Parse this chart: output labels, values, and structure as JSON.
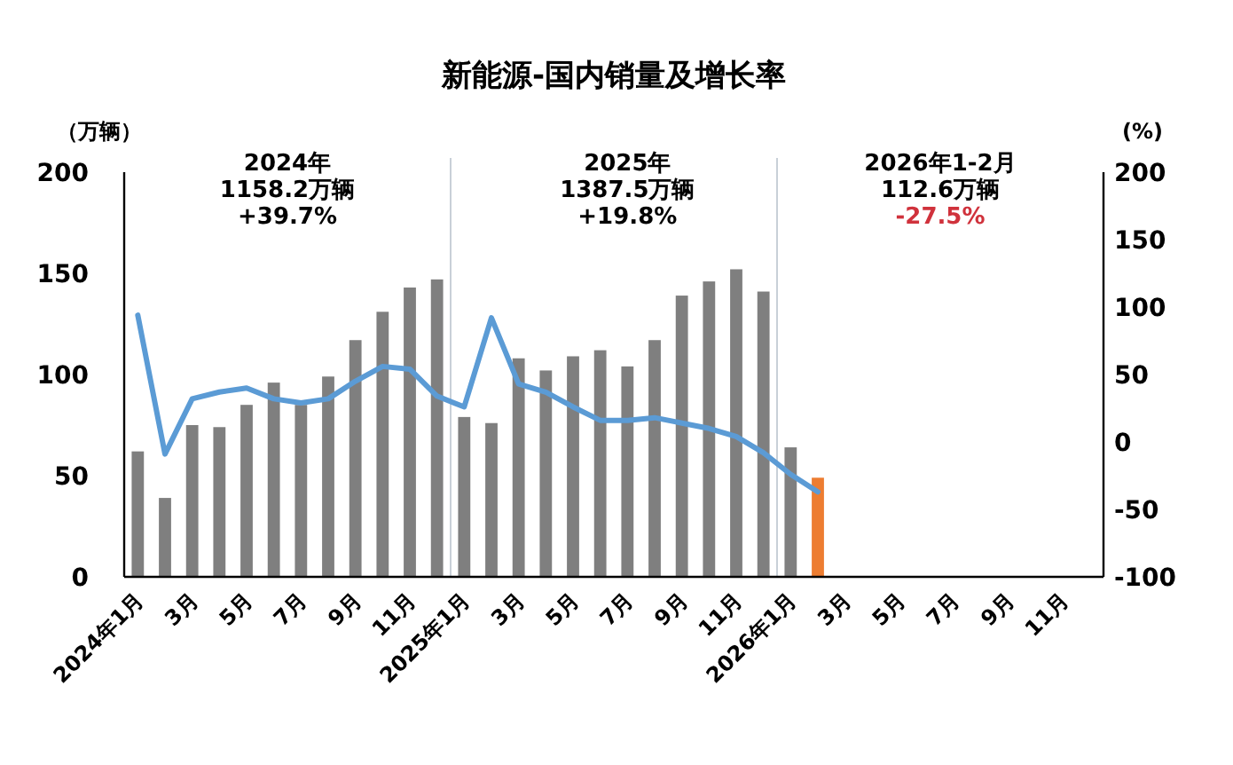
{
  "chart_data": {
    "type": "bar",
    "title": "新能源-国内销量及增长率",
    "ylabel": "（万辆）",
    "y2label": "(%)",
    "annotations": [
      "2024年",
      "1158.2万辆",
      "+39.7%",
      "2025年",
      "1387.5万辆",
      "+19.8%",
      "2026年1-2月",
      "112.6万辆",
      "-27.5%"
    ],
    "categories": [
      "2024年1月",
      null,
      "3月",
      null,
      "5月",
      null,
      "7月",
      null,
      "9月",
      null,
      "11月",
      null,
      "2025年1月",
      null,
      "3月",
      null,
      "5月",
      null,
      "7月",
      null,
      "9月",
      null,
      "11月",
      null,
      "2026年1月",
      null,
      "3月",
      null,
      "5月",
      null,
      "7月",
      null,
      "9月",
      null,
      "11月",
      null
    ],
    "series": [
      {
        "colors": [
          "#7f7f7f",
          "#7f7f7f",
          "#7f7f7f",
          "#7f7f7f",
          "#7f7f7f",
          "#7f7f7f",
          "#7f7f7f",
          "#7f7f7f",
          "#7f7f7f",
          "#7f7f7f",
          "#7f7f7f",
          "#7f7f7f",
          "#7f7f7f",
          "#7f7f7f",
          "#7f7f7f",
          "#7f7f7f",
          "#7f7f7f",
          "#7f7f7f",
          "#7f7f7f",
          "#7f7f7f",
          "#7f7f7f",
          "#7f7f7f",
          "#7f7f7f",
          "#7f7f7f",
          "#7f7f7f",
          "#ed7d31",
          null,
          null,
          null,
          null,
          null,
          null,
          null,
          null,
          null,
          null
        ],
        "values": [
          62,
          39,
          75,
          74,
          85,
          96,
          85,
          99,
          117,
          131,
          143,
          147,
          79,
          76,
          108,
          102,
          109,
          112,
          104,
          117,
          139,
          146,
          152,
          141,
          64,
          49,
          null,
          null,
          null,
          null,
          null,
          null,
          null,
          null,
          null,
          null
        ]
      },
      {
        "type": "line",
        "axis": "y2",
        "color": "#5b9bd5",
        "values": [
          94,
          -9,
          32,
          37,
          40,
          32,
          29,
          32,
          45,
          56,
          54,
          34,
          26,
          92,
          43,
          37,
          26,
          16,
          16,
          18,
          14,
          10,
          4,
          -8,
          -24,
          -37,
          null,
          null,
          null,
          null,
          null,
          null,
          null,
          null,
          null,
          null
        ]
      }
    ],
    "ylim": [
      0,
      200
    ],
    "yticks": [
      0,
      50,
      100,
      150,
      200
    ],
    "y2lim": [
      -100,
      200
    ],
    "y2ticks": [
      -100,
      -50,
      0,
      50,
      100,
      150,
      200
    ],
    "grid": false,
    "marker": "none"
  }
}
